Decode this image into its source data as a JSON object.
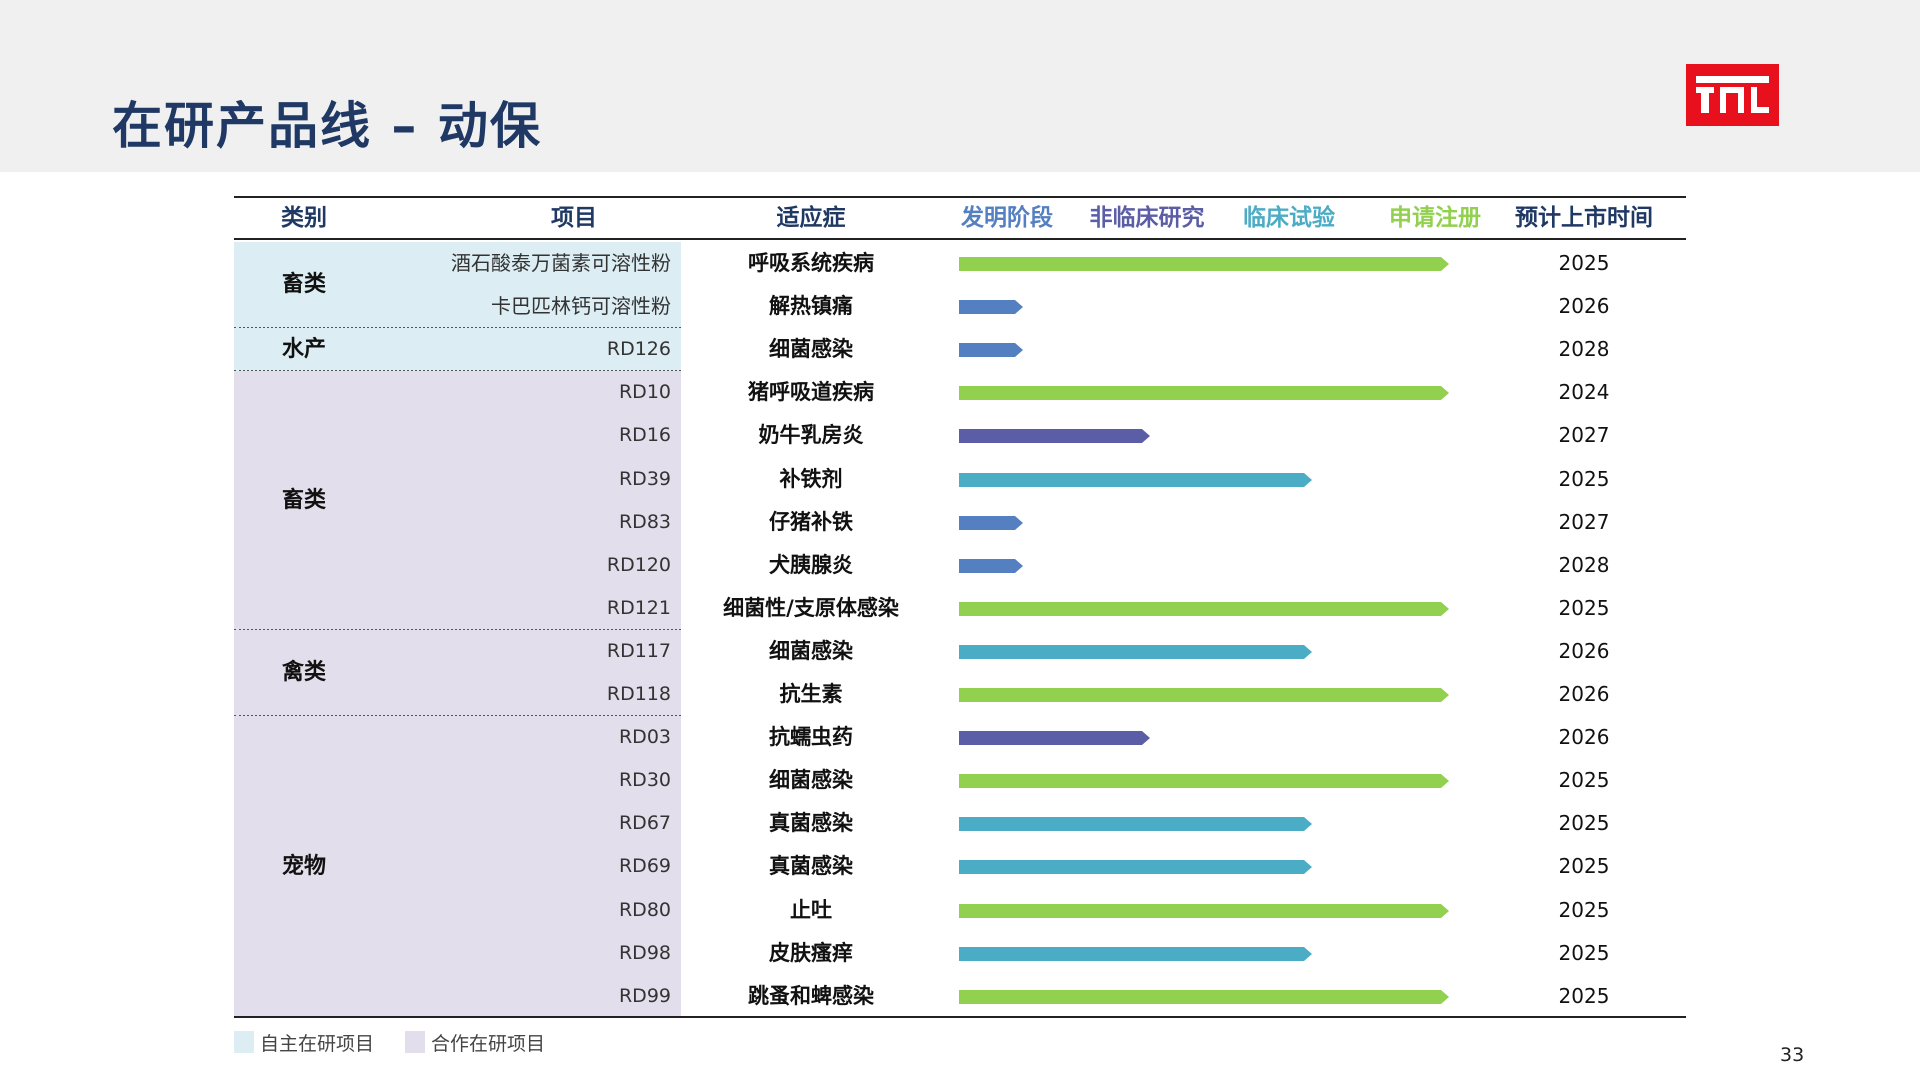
{
  "title": "在研产品线 – 动保",
  "page_number": "33",
  "colors": {
    "title": "#1f3864",
    "logo": "#e8101c",
    "band_self": "#dcedf4",
    "band_partner": "#e3deeb",
    "stage_invention": "#5480c1",
    "stage_preclinical": "#5b5ea6",
    "stage_clinical": "#4bacc6",
    "stage_registration": "#92d050"
  },
  "columns": {
    "category": "类别",
    "project": "项目",
    "indication": "适应症",
    "stage_invention": "发明阶段",
    "stage_preclinical": "非临床研究",
    "stage_clinical": "临床试验",
    "stage_registration": "申请注册",
    "launch": "预计上市时间"
  },
  "groups": [
    {
      "label": "畜类",
      "type": "self",
      "rows": [
        0,
        1
      ]
    },
    {
      "label": "水产",
      "type": "self",
      "rows": [
        2
      ]
    },
    {
      "label": "畜类",
      "type": "partner",
      "rows": [
        3,
        4,
        5,
        6,
        7,
        8
      ]
    },
    {
      "label": "禽类",
      "type": "partner",
      "rows": [
        9,
        10
      ]
    },
    {
      "label": "宠物",
      "type": "partner",
      "rows": [
        11,
        12,
        13,
        14,
        15,
        16,
        17
      ]
    }
  ],
  "rows": [
    {
      "project": "酒石酸泰万菌素可溶性粉",
      "indication": "呼吸系统疾病",
      "stage": "申请注册",
      "year": "2025"
    },
    {
      "project": "卡巴匹林钙可溶性粉",
      "indication": "解热镇痛",
      "stage": "发明阶段",
      "year": "2026"
    },
    {
      "project": "RD126",
      "indication": "细菌感染",
      "stage": "发明阶段",
      "year": "2028"
    },
    {
      "project": "RD10",
      "indication": "猪呼吸道疾病",
      "stage": "申请注册",
      "year": "2024"
    },
    {
      "project": "RD16",
      "indication": "奶牛乳房炎",
      "stage": "非临床研究",
      "year": "2027"
    },
    {
      "project": "RD39",
      "indication": "补铁剂",
      "stage": "临床试验",
      "year": "2025"
    },
    {
      "project": "RD83",
      "indication": "仔猪补铁",
      "stage": "发明阶段",
      "year": "2027"
    },
    {
      "project": "RD120",
      "indication": "犬胰腺炎",
      "stage": "发明阶段",
      "year": "2028"
    },
    {
      "project": "RD121",
      "indication": "细菌性/支原体感染",
      "stage": "申请注册",
      "year": "2025"
    },
    {
      "project": "RD117",
      "indication": "细菌感染",
      "stage": "临床试验",
      "year": "2026"
    },
    {
      "project": "RD118",
      "indication": "抗生素",
      "stage": "申请注册",
      "year": "2026"
    },
    {
      "project": "RD03",
      "indication": "抗蠕虫药",
      "stage": "非临床研究",
      "year": "2026"
    },
    {
      "project": "RD30",
      "indication": "细菌感染",
      "stage": "申请注册",
      "year": "2025"
    },
    {
      "project": "RD67",
      "indication": "真菌感染",
      "stage": "临床试验",
      "year": "2025"
    },
    {
      "project": "RD69",
      "indication": "真菌感染",
      "stage": "临床试验",
      "year": "2025"
    },
    {
      "project": "RD80",
      "indication": "止吐",
      "stage": "申请注册",
      "year": "2025"
    },
    {
      "project": "RD98",
      "indication": "皮肤瘙痒",
      "stage": "临床试验",
      "year": "2025"
    },
    {
      "project": "RD99",
      "indication": "跳蚤和蜱感染",
      "stage": "申请注册",
      "year": "2025"
    }
  ],
  "legend": [
    {
      "label": "自主在研项目",
      "type": "self"
    },
    {
      "label": "合作在研项目",
      "type": "partner"
    }
  ]
}
